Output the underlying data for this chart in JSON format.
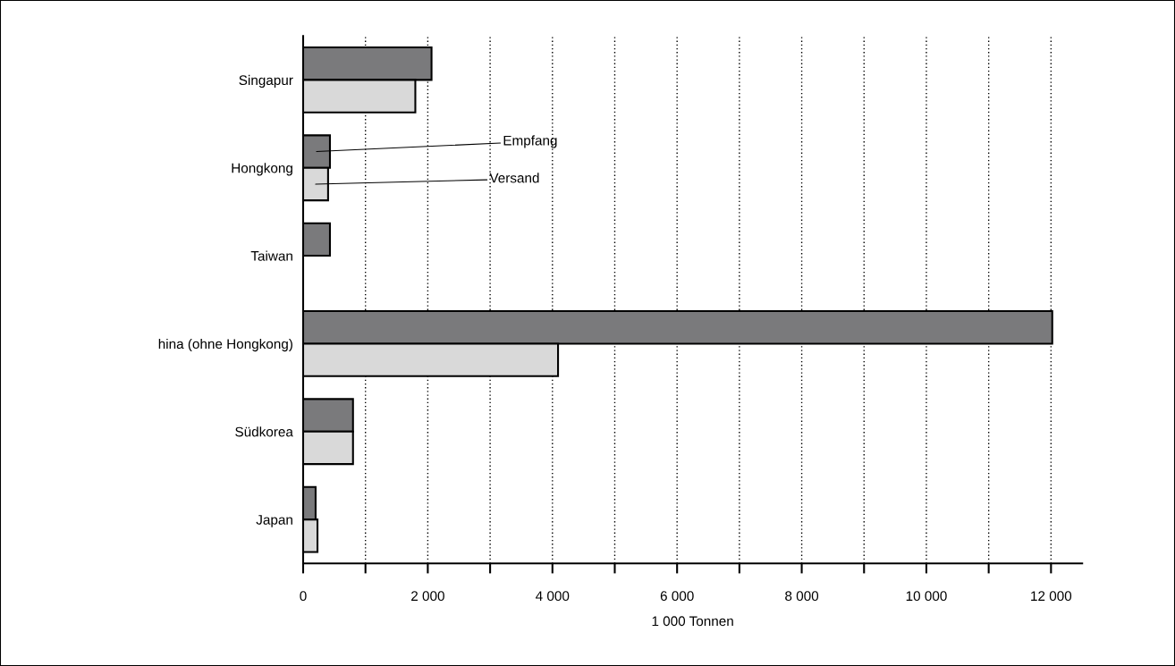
{
  "chart_data": {
    "type": "bar",
    "orientation": "horizontal",
    "categories": [
      "Singapur",
      "Hongkong",
      "Taiwan",
      "hina (ohne Hongkong)",
      "Südkorea",
      "Japan"
    ],
    "series": [
      {
        "name": "Empfang",
        "color": "#7a7a7c",
        "values": [
          2060,
          430,
          430,
          12020,
          800,
          200
        ]
      },
      {
        "name": "Versand",
        "color": "#d9d9d9",
        "values": [
          1800,
          400,
          null,
          4090,
          800,
          230
        ]
      }
    ],
    "xlabel": "1 000 Tonnen",
    "xlim": [
      0,
      12500
    ],
    "xticks": [
      0,
      {
        "value": 1000,
        "label": null
      },
      {
        "value": 2000,
        "label": "2 000"
      },
      {
        "value": 3000,
        "label": null
      },
      {
        "value": 4000,
        "label": "4 000"
      },
      {
        "value": 5000,
        "label": null
      },
      {
        "value": 6000,
        "label": "6 000"
      },
      {
        "value": 7000,
        "label": null
      },
      {
        "value": 8000,
        "label": "8 000"
      },
      {
        "value": 9000,
        "label": null
      },
      {
        "value": 10000,
        "label": "10 000"
      },
      {
        "value": 11000,
        "label": null
      },
      {
        "value": 12000,
        "label": "12 000"
      }
    ],
    "grid": "x",
    "legend": false
  }
}
